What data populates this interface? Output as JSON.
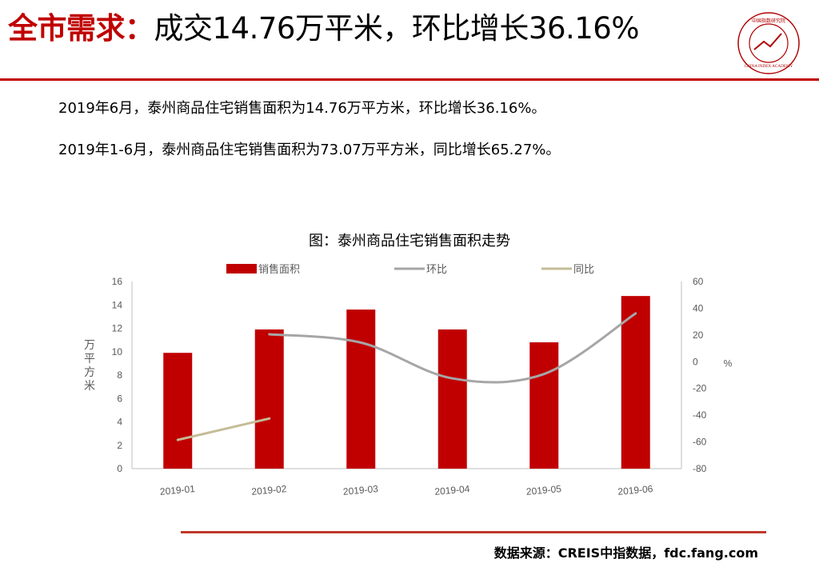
{
  "header": {
    "title_red": "全市需求：",
    "title_black": "成交14.76万平米，环比增长36.16%"
  },
  "logo": {
    "icon": "china-index-academy-seal",
    "text": "CHINA INDEX ACADEMY",
    "chinese": "中国指数研究院"
  },
  "summary": [
    "2019年6月，泰州商品住宅销售面积为14.76万平方米，环比增长36.16%。",
    "2019年1-6月，泰州商品住宅销售面积为73.07万平方米，同比增长65.27%。"
  ],
  "chart_title": "图：泰州商品住宅销售面积走势",
  "chart_data": {
    "type": "bar",
    "title": "图：泰州商品住宅销售面积走势",
    "categories": [
      "2019-01",
      "2019-02",
      "2019-03",
      "2019-04",
      "2019-05",
      "2019-06"
    ],
    "series": [
      {
        "name": "销售面积",
        "type": "bar",
        "axis": "left",
        "color": "#c00000",
        "values": [
          9.9,
          11.9,
          13.6,
          11.9,
          10.8,
          14.76
        ]
      },
      {
        "name": "环比",
        "type": "line",
        "axis": "right",
        "color": "#a6a6a6",
        "values": [
          null,
          20.5,
          14.3,
          -12.5,
          -9.2,
          36.16
        ]
      },
      {
        "name": "同比",
        "type": "line",
        "axis": "right",
        "color": "#c4bd97",
        "values": [
          -58.5,
          -42.5,
          null,
          null,
          null,
          null
        ]
      }
    ],
    "ylabel": "万平方米",
    "y2label": "%",
    "ylim": [
      0,
      16
    ],
    "yticks": [
      0,
      2,
      4,
      6,
      8,
      10,
      12,
      14,
      16
    ],
    "y2lim": [
      -80,
      60
    ],
    "y2ticks": [
      -80,
      -60,
      -40,
      -20,
      0,
      20,
      40,
      60
    ],
    "legend_position": "top",
    "grid": false
  },
  "footer": {
    "source": "数据来源：CREIS中指数据，fdc.fang.com"
  }
}
